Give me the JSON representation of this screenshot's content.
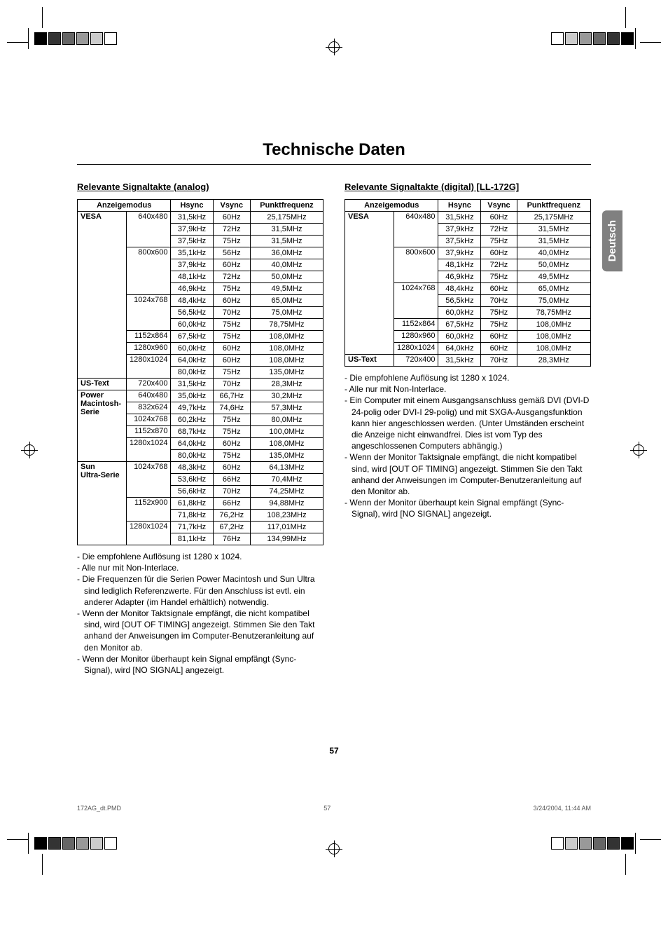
{
  "page_title": "Technische Daten",
  "side_tab": "Deutsch",
  "page_number": "57",
  "footer": {
    "file": "172AG_dt.PMD",
    "page": "57",
    "date": "3/24/2004, 11:44 AM"
  },
  "analog": {
    "heading": "Relevante Signaltakte (analog)",
    "columns": [
      "Anzeigemodus",
      "Hsync",
      "Vsync",
      "Punktfrequenz"
    ],
    "groups": [
      {
        "mode": "VESA",
        "res": "640x480",
        "rows": [
          [
            "31,5kHz",
            "60Hz",
            "25,175MHz"
          ],
          [
            "37,9kHz",
            "72Hz",
            "31,5MHz"
          ],
          [
            "37,5kHz",
            "75Hz",
            "31,5MHz"
          ]
        ]
      },
      {
        "mode": "",
        "res": "800x600",
        "rows": [
          [
            "35,1kHz",
            "56Hz",
            "36,0MHz"
          ],
          [
            "37,9kHz",
            "60Hz",
            "40,0MHz"
          ],
          [
            "48,1kHz",
            "72Hz",
            "50,0MHz"
          ],
          [
            "46,9kHz",
            "75Hz",
            "49,5MHz"
          ]
        ]
      },
      {
        "mode": "",
        "res": "1024x768",
        "rows": [
          [
            "48,4kHz",
            "60Hz",
            "65,0MHz"
          ],
          [
            "56,5kHz",
            "70Hz",
            "75,0MHz"
          ],
          [
            "60,0kHz",
            "75Hz",
            "78,75MHz"
          ]
        ]
      },
      {
        "mode": "",
        "res": "1152x864",
        "rows": [
          [
            "67,5kHz",
            "75Hz",
            "108,0MHz"
          ]
        ]
      },
      {
        "mode": "",
        "res": "1280x960",
        "rows": [
          [
            "60,0kHz",
            "60Hz",
            "108,0MHz"
          ]
        ]
      },
      {
        "mode": "",
        "res": "1280x1024",
        "rows": [
          [
            "64,0kHz",
            "60Hz",
            "108,0MHz"
          ],
          [
            "80,0kHz",
            "75Hz",
            "135,0MHz"
          ]
        ]
      },
      {
        "mode": "US-Text",
        "res": "720x400",
        "rows": [
          [
            "31,5kHz",
            "70Hz",
            "28,3MHz"
          ]
        ]
      },
      {
        "mode": "Power Macintosh-Serie",
        "res": "640x480",
        "rows": [
          [
            "35,0kHz",
            "66,7Hz",
            "30,2MHz"
          ]
        ]
      },
      {
        "mode": "",
        "res": "832x624",
        "rows": [
          [
            "49,7kHz",
            "74,6Hz",
            "57,3MHz"
          ]
        ]
      },
      {
        "mode": "",
        "res": "1024x768",
        "rows": [
          [
            "60,2kHz",
            "75Hz",
            "80,0MHz"
          ]
        ]
      },
      {
        "mode": "",
        "res": "1152x870",
        "rows": [
          [
            "68,7kHz",
            "75Hz",
            "100,0MHz"
          ]
        ]
      },
      {
        "mode": "",
        "res": "1280x1024",
        "rows": [
          [
            "64,0kHz",
            "60Hz",
            "108,0MHz"
          ],
          [
            "80,0kHz",
            "75Hz",
            "135,0MHz"
          ]
        ]
      },
      {
        "mode": "Sun Ultra-Serie",
        "res": "1024x768",
        "rows": [
          [
            "48,3kHz",
            "60Hz",
            "64,13MHz"
          ],
          [
            "53,6kHz",
            "66Hz",
            "70,4MHz"
          ],
          [
            "56,6kHz",
            "70Hz",
            "74,25MHz"
          ]
        ]
      },
      {
        "mode": "",
        "res": "1152x900",
        "rows": [
          [
            "61,8kHz",
            "66Hz",
            "94,88MHz"
          ],
          [
            "71,8kHz",
            "76,2Hz",
            "108,23MHz"
          ]
        ]
      },
      {
        "mode": "",
        "res": "1280x1024",
        "rows": [
          [
            "71,7kHz",
            "67,2Hz",
            "117,01MHz"
          ],
          [
            "81,1kHz",
            "76Hz",
            "134,99MHz"
          ]
        ]
      }
    ],
    "notes": [
      "Die empfohlene Auflösung ist 1280 x 1024.",
      "Alle nur mit Non-Interlace.",
      "Die Frequenzen für die Serien Power Macintosh und Sun Ultra sind lediglich Referenzwerte. Für den Anschluss ist evtl. ein anderer Adapter (im Handel erhältlich) notwendig.",
      "Wenn der Monitor Taktsignale empfängt, die nicht kompatibel sind, wird [OUT OF TIMING] angezeigt. Stimmen Sie den Takt anhand der Anweisungen im Computer-Benutzeranleitung auf den Monitor ab.",
      "Wenn der Monitor überhaupt kein Signal empfängt (Sync-Signal), wird [NO SIGNAL] angezeigt."
    ]
  },
  "digital": {
    "heading": "Relevante Signaltakte (digital)",
    "heading_suffix": " [LL-172G]",
    "columns": [
      "Anzeigemodus",
      "Hsync",
      "Vsync",
      "Punktfrequenz"
    ],
    "groups": [
      {
        "mode": "VESA",
        "res": "640x480",
        "rows": [
          [
            "31,5kHz",
            "60Hz",
            "25,175MHz"
          ],
          [
            "37,9kHz",
            "72Hz",
            "31,5MHz"
          ],
          [
            "37,5kHz",
            "75Hz",
            "31,5MHz"
          ]
        ]
      },
      {
        "mode": "",
        "res": "800x600",
        "rows": [
          [
            "37,9kHz",
            "60Hz",
            "40,0MHz"
          ],
          [
            "48,1kHz",
            "72Hz",
            "50,0MHz"
          ],
          [
            "46,9kHz",
            "75Hz",
            "49,5MHz"
          ]
        ]
      },
      {
        "mode": "",
        "res": "1024x768",
        "rows": [
          [
            "48,4kHz",
            "60Hz",
            "65,0MHz"
          ],
          [
            "56,5kHz",
            "70Hz",
            "75,0MHz"
          ],
          [
            "60,0kHz",
            "75Hz",
            "78,75MHz"
          ]
        ]
      },
      {
        "mode": "",
        "res": "1152x864",
        "rows": [
          [
            "67,5kHz",
            "75Hz",
            "108,0MHz"
          ]
        ]
      },
      {
        "mode": "",
        "res": "1280x960",
        "rows": [
          [
            "60,0kHz",
            "60Hz",
            "108,0MHz"
          ]
        ]
      },
      {
        "mode": "",
        "res": "1280x1024",
        "rows": [
          [
            "64,0kHz",
            "60Hz",
            "108,0MHz"
          ]
        ]
      },
      {
        "mode": "US-Text",
        "res": "720x400",
        "rows": [
          [
            "31,5kHz",
            "70Hz",
            "28,3MHz"
          ]
        ]
      }
    ],
    "notes": [
      "Die empfohlene Auflösung ist 1280 x 1024.",
      "Alle nur mit Non-Interlace.",
      "Ein Computer mit einem Ausgangsanschluss gemäß DVI (DVI-D 24-polig oder DVI-I 29-polig) und mit SXGA-Ausgangsfunktion kann hier angeschlossen werden. (Unter Umständen erscheint die Anzeige nicht einwandfrei. Dies ist vom Typ des angeschlossenen Computers abhängig.)",
      "Wenn der Monitor Taktsignale empfängt, die nicht kompatibel sind, wird [OUT OF TIMING] angezeigt. Stimmen Sie den Takt anhand der Anweisungen im Computer-Benutzeranleitung auf den Monitor ab.",
      "Wenn der Monitor überhaupt kein Signal empfängt (Sync-Signal), wird [NO SIGNAL] angezeigt."
    ]
  }
}
